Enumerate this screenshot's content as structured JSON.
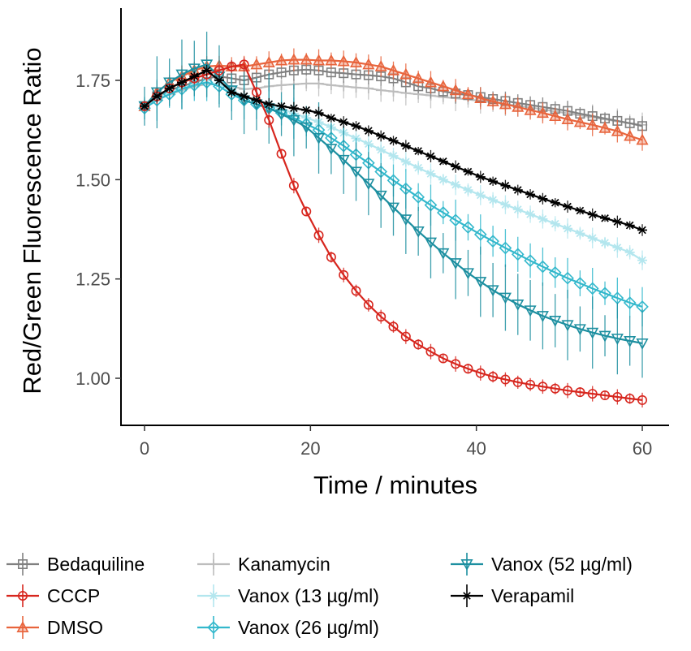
{
  "chart_data": {
    "type": "line",
    "xlabel": "Time / minutes",
    "ylabel": "Red/Green Fluorescence Ratio",
    "xlim": [
      -2,
      63
    ],
    "ylim": [
      0.88,
      1.91
    ],
    "xticks": [
      0,
      20,
      40,
      60
    ],
    "xtick_labels": [
      "0",
      "20",
      "40",
      "60"
    ],
    "yticks": [
      1.0,
      1.25,
      1.5,
      1.75
    ],
    "ytick_labels": [
      "1.00",
      "1.25",
      "1.50",
      "1.75"
    ],
    "grid": false,
    "legend_position": "bottom",
    "x": [
      0,
      1.5,
      3,
      4.5,
      6,
      7.5,
      9,
      10.5,
      12,
      13.5,
      15,
      16.5,
      18,
      19.5,
      21,
      22.5,
      24,
      25.5,
      27,
      28.5,
      30,
      31.5,
      33,
      34.5,
      36,
      37.5,
      39,
      40.5,
      42,
      43.5,
      45,
      46.5,
      48,
      49.5,
      51,
      52.5,
      54,
      55.5,
      57,
      58.5,
      60
    ],
    "series": [
      {
        "name": "Bedaquiline",
        "color": "#808080",
        "marker": "square",
        "err": 0.02,
        "values": [
          1.685,
          1.71,
          1.725,
          1.735,
          1.745,
          1.755,
          1.76,
          1.755,
          1.75,
          1.757,
          1.765,
          1.77,
          1.775,
          1.777,
          1.775,
          1.77,
          1.768,
          1.765,
          1.763,
          1.76,
          1.755,
          1.745,
          1.735,
          1.73,
          1.722,
          1.717,
          1.713,
          1.708,
          1.703,
          1.698,
          1.693,
          1.688,
          1.683,
          1.678,
          1.673,
          1.666,
          1.66,
          1.654,
          1.648,
          1.642,
          1.635
        ]
      },
      {
        "name": "CCCP",
        "color": "#d7261e",
        "marker": "circle",
        "err": 0.015,
        "values": [
          1.685,
          1.71,
          1.73,
          1.745,
          1.755,
          1.765,
          1.775,
          1.785,
          1.79,
          1.72,
          1.65,
          1.565,
          1.485,
          1.42,
          1.36,
          1.305,
          1.26,
          1.22,
          1.185,
          1.155,
          1.13,
          1.105,
          1.085,
          1.067,
          1.05,
          1.036,
          1.024,
          1.013,
          1.004,
          0.997,
          0.99,
          0.984,
          0.979,
          0.974,
          0.969,
          0.965,
          0.961,
          0.957,
          0.953,
          0.949,
          0.945
        ]
      },
      {
        "name": "DMSO",
        "color": "#e8643c",
        "marker": "triangle-up",
        "err": 0.022,
        "values": [
          1.685,
          1.72,
          1.745,
          1.76,
          1.775,
          1.785,
          1.787,
          1.785,
          1.785,
          1.79,
          1.795,
          1.8,
          1.802,
          1.802,
          1.8,
          1.8,
          1.798,
          1.795,
          1.79,
          1.785,
          1.775,
          1.765,
          1.755,
          1.745,
          1.735,
          1.725,
          1.715,
          1.705,
          1.697,
          1.69,
          1.683,
          1.675,
          1.668,
          1.66,
          1.652,
          1.645,
          1.638,
          1.63,
          1.622,
          1.61,
          1.6
        ]
      },
      {
        "name": "Kanamycin",
        "color": "#bdbdbd",
        "marker": "plus",
        "err": 0.025,
        "values": [
          1.685,
          1.7,
          1.715,
          1.725,
          1.735,
          1.74,
          1.74,
          1.735,
          1.728,
          1.73,
          1.735,
          1.738,
          1.74,
          1.742,
          1.742,
          1.738,
          1.735,
          1.732,
          1.73,
          1.725,
          1.722,
          1.718,
          1.715,
          1.712,
          1.708,
          1.705,
          1.702,
          1.698,
          1.695,
          1.69,
          1.686,
          1.682,
          1.677,
          1.672,
          1.667,
          1.662,
          1.657,
          1.652,
          1.647,
          1.642,
          1.638
        ]
      },
      {
        "name": "Vanox (13 µg/ml)",
        "color": "#b3e6ee",
        "marker": "asterisk",
        "err": 0.02,
        "values": [
          1.685,
          1.705,
          1.72,
          1.73,
          1.74,
          1.745,
          1.74,
          1.725,
          1.71,
          1.7,
          1.69,
          1.678,
          1.667,
          1.656,
          1.645,
          1.632,
          1.618,
          1.604,
          1.59,
          1.575,
          1.56,
          1.545,
          1.53,
          1.515,
          1.5,
          1.487,
          1.474,
          1.461,
          1.449,
          1.437,
          1.425,
          1.413,
          1.401,
          1.389,
          1.377,
          1.365,
          1.353,
          1.341,
          1.329,
          1.317,
          1.297
        ]
      },
      {
        "name": "Vanox (26 µg/ml)",
        "color": "#33b8cc",
        "marker": "diamond",
        "err": 0.04,
        "values": [
          1.68,
          1.7,
          1.715,
          1.728,
          1.738,
          1.745,
          1.735,
          1.715,
          1.7,
          1.69,
          1.68,
          1.668,
          1.655,
          1.64,
          1.625,
          1.605,
          1.585,
          1.563,
          1.542,
          1.52,
          1.498,
          1.477,
          1.456,
          1.436,
          1.417,
          1.398,
          1.38,
          1.362,
          1.345,
          1.328,
          1.312,
          1.296,
          1.281,
          1.266,
          1.252,
          1.239,
          1.226,
          1.214,
          1.202,
          1.19,
          1.18
        ]
      },
      {
        "name": "Vanox (52 µg/ml)",
        "color": "#1d8fa0",
        "marker": "triangle-down",
        "err": 0.07,
        "values": [
          1.685,
          1.72,
          1.745,
          1.765,
          1.78,
          1.79,
          1.76,
          1.725,
          1.7,
          1.69,
          1.68,
          1.665,
          1.65,
          1.632,
          1.605,
          1.578,
          1.55,
          1.52,
          1.49,
          1.46,
          1.43,
          1.4,
          1.37,
          1.342,
          1.315,
          1.29,
          1.265,
          1.243,
          1.222,
          1.203,
          1.186,
          1.171,
          1.157,
          1.145,
          1.134,
          1.124,
          1.115,
          1.107,
          1.1,
          1.094,
          1.088
        ]
      },
      {
        "name": "Verapamil",
        "color": "#000000",
        "marker": "star",
        "err": 0.012,
        "values": [
          1.685,
          1.71,
          1.73,
          1.745,
          1.76,
          1.775,
          1.75,
          1.72,
          1.71,
          1.7,
          1.69,
          1.685,
          1.68,
          1.675,
          1.668,
          1.655,
          1.645,
          1.635,
          1.623,
          1.61,
          1.598,
          1.585,
          1.572,
          1.559,
          1.546,
          1.533,
          1.52,
          1.507,
          1.496,
          1.485,
          1.474,
          1.463,
          1.452,
          1.442,
          1.432,
          1.422,
          1.412,
          1.403,
          1.394,
          1.385,
          1.373
        ]
      }
    ]
  }
}
